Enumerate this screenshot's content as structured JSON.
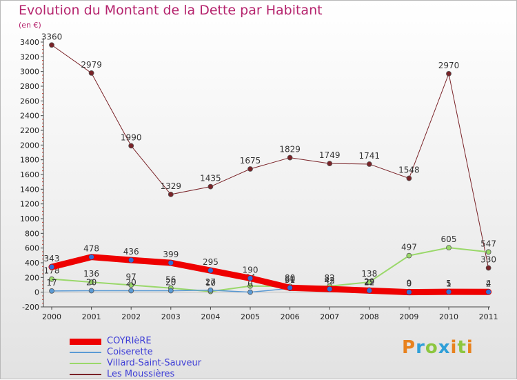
{
  "header": {
    "title": "Evolution du Montant de la Dette par Habitant",
    "unit": "(en €)"
  },
  "logo": {
    "letters": [
      "P",
      "r",
      "o",
      "x",
      "i",
      "t",
      "i"
    ]
  },
  "chart_data": {
    "type": "line",
    "categories": [
      "2000",
      "2001",
      "2002",
      "2003",
      "2004",
      "2005",
      "2006",
      "2007",
      "2008",
      "2009",
      "2010",
      "2011"
    ],
    "ylim": [
      -200,
      3400
    ],
    "yticks": [
      -200,
      0,
      200,
      400,
      600,
      800,
      1000,
      1200,
      1400,
      1600,
      1800,
      2000,
      2200,
      2400,
      2600,
      2800,
      3000,
      3200,
      3400
    ],
    "grid": false,
    "legend_position": "bottom-left",
    "series": [
      {
        "name": "Les Moussières",
        "color": "#7a2328",
        "width": 1,
        "values": [
          3360,
          2979,
          1990,
          1329,
          1435,
          1675,
          1829,
          1749,
          1741,
          1548,
          2970,
          330
        ],
        "labels": [
          "3360",
          "2979",
          "1990",
          "1329",
          "1435",
          "1675",
          "1829",
          "1749",
          "1741",
          "1548",
          "2970",
          "330"
        ]
      },
      {
        "name": "Villard-Saint-Sauveur",
        "color": "#9ad86a",
        "width": 2,
        "values": [
          178,
          136,
          97,
          56,
          10,
          84,
          80,
          82,
          138,
          497,
          605,
          547
        ],
        "labels": [
          "178",
          "136",
          "97",
          "56",
          "10",
          "84",
          "80",
          "82",
          "138",
          "497",
          "605",
          "547"
        ]
      },
      {
        "name": "Coiserette",
        "color": "#5b9bd5",
        "width": 1.5,
        "values": [
          17,
          20,
          20,
          20,
          27,
          0,
          51,
          42,
          29,
          9,
          1,
          2
        ],
        "labels": [
          "17",
          "20",
          "20",
          "20",
          "27",
          "0",
          "51",
          "42",
          "29",
          "9",
          "1",
          "2"
        ]
      },
      {
        "name": "COYRIèRE",
        "color": "#ee0000",
        "width": 9,
        "values": [
          343,
          478,
          436,
          399,
          295,
          190,
          60,
          43,
          22,
          0,
          5,
          4
        ],
        "labels": [
          "343",
          "478",
          "436",
          "399",
          "295",
          "190",
          "60",
          "43",
          "22",
          "0",
          "5",
          "4"
        ]
      }
    ],
    "legend": [
      {
        "name": "COYRIèRE",
        "color": "#ee0000",
        "thickness": 9
      },
      {
        "name": "Coiserette",
        "color": "#5b9bd5",
        "thickness": 2
      },
      {
        "name": "Villard-Saint-Sauveur",
        "color": "#9ad86a",
        "thickness": 2
      },
      {
        "name": "Les Moussières",
        "color": "#7a2328",
        "thickness": 2
      }
    ]
  }
}
